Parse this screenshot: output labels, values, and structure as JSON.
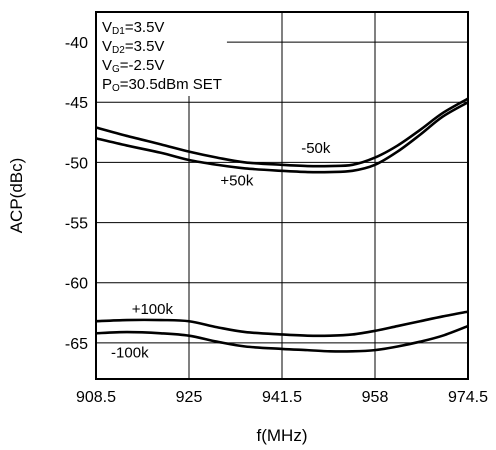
{
  "chart_data": {
    "type": "line",
    "title": "",
    "xlabel": "f(MHz)",
    "ylabel": "ACP(dBc)",
    "xlim": [
      908.5,
      974.5
    ],
    "ylim": [
      -68,
      -37.5
    ],
    "x_ticks": [
      908.5,
      925,
      941.5,
      958,
      974.5
    ],
    "x_tick_labels": [
      "908.5",
      "925",
      "941.5",
      "958",
      "974.5"
    ],
    "y_ticks": [
      -40,
      -45,
      -50,
      -55,
      -60,
      -65
    ],
    "y_tick_labels": [
      "-40",
      "-45",
      "-50",
      "-55",
      "-60",
      "-65"
    ],
    "grid": true,
    "conditions": {
      "vd1": {
        "main": "V",
        "sub": "D1",
        "rest": "=3.5V"
      },
      "vd2": {
        "main": "V",
        "sub": "D2",
        "rest": "=3.5V"
      },
      "vg": {
        "main": "V",
        "sub": "G",
        "rest": "=-2.5V"
      },
      "po": {
        "main": "P",
        "sub": "O",
        "rest": "=30.5dBm SET"
      }
    },
    "series": [
      {
        "name": "-50k",
        "x": [
          908.5,
          914,
          920,
          925,
          930,
          935,
          941.5,
          946,
          950,
          954,
          958,
          962,
          966,
          970,
          974.5
        ],
        "y": [
          -47.1,
          -47.8,
          -48.5,
          -49.1,
          -49.6,
          -50.0,
          -50.2,
          -50.3,
          -50.3,
          -50.2,
          -49.6,
          -48.6,
          -47.3,
          -45.9,
          -44.7
        ]
      },
      {
        "name": "+50k",
        "x": [
          908.5,
          914,
          920,
          925,
          930,
          935,
          941.5,
          946,
          950,
          954,
          958,
          962,
          966,
          970,
          974.5
        ],
        "y": [
          -48.0,
          -48.6,
          -49.2,
          -49.8,
          -50.2,
          -50.5,
          -50.7,
          -50.8,
          -50.8,
          -50.7,
          -50.2,
          -49.1,
          -47.7,
          -46.2,
          -45.0
        ]
      },
      {
        "name": "+100k",
        "x": [
          908.5,
          914,
          920,
          925,
          930,
          935,
          941.5,
          946,
          950,
          954,
          958,
          962,
          966,
          970,
          974.5
        ],
        "y": [
          -63.2,
          -63.1,
          -63.1,
          -63.2,
          -63.7,
          -64.1,
          -64.3,
          -64.4,
          -64.4,
          -64.3,
          -64.0,
          -63.6,
          -63.2,
          -62.8,
          -62.4
        ]
      },
      {
        "name": "-100k",
        "x": [
          908.5,
          914,
          920,
          925,
          930,
          935,
          941.5,
          946,
          950,
          954,
          958,
          962,
          966,
          970,
          974.5
        ],
        "y": [
          -64.2,
          -64.1,
          -64.2,
          -64.4,
          -64.9,
          -65.3,
          -65.5,
          -65.6,
          -65.7,
          -65.7,
          -65.6,
          -65.3,
          -64.9,
          -64.4,
          -63.6
        ]
      }
    ],
    "annotations": [
      {
        "text": "-50k",
        "x": 947.5,
        "y": -49.2
      },
      {
        "text": "+50k",
        "x": 933.5,
        "y": -51.9
      },
      {
        "text": "+100k",
        "x": 918.5,
        "y": -62.6
      },
      {
        "text": "-100k",
        "x": 914.5,
        "y": -66.2
      }
    ]
  }
}
